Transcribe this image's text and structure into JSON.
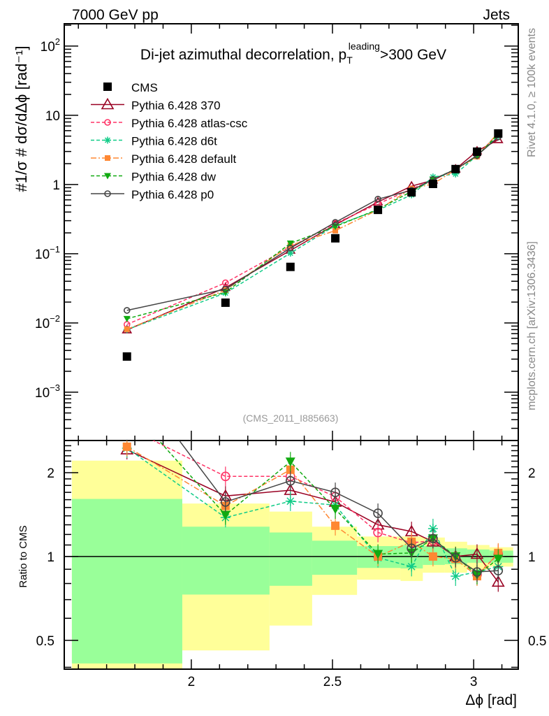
{
  "header": {
    "left": "7000 GeV pp",
    "right": "Jets"
  },
  "side": {
    "rivet": "Rivet 4.1.0, ≥ 100k events",
    "mcplots": "mcplots.cern.ch [arXiv:1306.3436]"
  },
  "chart_data": {
    "type": "line",
    "title": "Di-jet azimuthal decorrelation, p",
    "title_sub": "T",
    "title_sup": "leading",
    "title_tail": ">300 GeV",
    "analysis_id": "(CMS_2011_I885663)",
    "xlabel": "Δϕ [rad]",
    "ylabel": "#1/σ # dσ/dΔϕ [rad⁻¹]",
    "ratio_ylabel": "Ratio to CMS",
    "xlim": [
      1.55,
      3.158
    ],
    "ylim": [
      0.0002,
      210
    ],
    "yscale": "log",
    "ratio_ylim": [
      0.394,
      2.61
    ],
    "x_ticks": [
      "2",
      "2.5",
      "3"
    ],
    "x_tick_values": [
      2,
      2.5,
      3
    ],
    "y_ticks": [
      {
        "value": 100,
        "base": "10",
        "exp": "2"
      },
      {
        "value": 10,
        "base": "10",
        "exp": ""
      },
      {
        "value": 1,
        "base": "1",
        "exp": ""
      },
      {
        "value": 0.1,
        "base": "10",
        "exp": "−1"
      },
      {
        "value": 0.01,
        "base": "10",
        "exp": "−2"
      },
      {
        "value": 0.001,
        "base": "10",
        "exp": "−3"
      }
    ],
    "ratio_ticks": [
      {
        "value": 2,
        "label": "2"
      },
      {
        "value": 1,
        "label": "1"
      },
      {
        "value": 0.5,
        "label": "0.5"
      }
    ],
    "x": [
      1.772,
      2.121,
      2.351,
      2.51,
      2.661,
      2.78,
      2.856,
      2.936,
      3.012,
      3.087
    ],
    "data": {
      "name": "CMS",
      "values": [
        0.00327,
        0.0196,
        0.0645,
        0.167,
        0.43,
        0.77,
        1.02,
        1.67,
        2.98,
        5.46
      ]
    },
    "bins": [
      1.577,
      1.968,
      2.277,
      2.428,
      2.587,
      2.741,
      2.82,
      2.898,
      2.977,
      3.056,
      3.14
    ],
    "band_outer": [
      [
        0.38,
        2.21
      ],
      [
        0.46,
        1.55
      ],
      [
        0.565,
        1.45
      ],
      [
        0.728,
        1.28
      ],
      [
        0.826,
        1.18
      ],
      [
        0.817,
        1.18
      ],
      [
        0.875,
        1.17
      ],
      [
        0.875,
        1.13
      ],
      [
        0.896,
        1.1
      ],
      [
        0.92,
        1.08
      ]
    ],
    "band_inner": [
      [
        0.413,
        1.61
      ],
      [
        0.73,
        1.28
      ],
      [
        0.785,
        1.22
      ],
      [
        0.86,
        1.14
      ],
      [
        0.91,
        1.09
      ],
      [
        0.906,
        1.1
      ],
      [
        0.933,
        1.09
      ],
      [
        0.938,
        1.07
      ],
      [
        0.95,
        1.06
      ],
      [
        0.95,
        1.05
      ]
    ],
    "series": [
      {
        "name": "Pythia 6.428 370",
        "color": "#990022",
        "dash": "",
        "marker": "triangle-open",
        "ratio": [
          2.42,
          1.65,
          1.73,
          1.57,
          1.3,
          1.23,
          1.13,
          1.0,
          1.02,
          0.81
        ]
      },
      {
        "name": "Pythia 6.428 atlas-csc",
        "color": "#ff3366",
        "dash": "5,3",
        "marker": "circle-open",
        "ratio": [
          2.91,
          1.94,
          1.94,
          1.64,
          1.22,
          1.12,
          1.14,
          1.0,
          0.86,
          1.02
        ]
      },
      {
        "name": "Pythia 6.428 d6t",
        "color": "#11cc88",
        "dash": "5,3",
        "marker": "star",
        "ratio": [
          2.45,
          1.38,
          1.58,
          1.53,
          0.99,
          0.92,
          1.26,
          0.85,
          0.88,
          0.92
        ]
      },
      {
        "name": "Pythia 6.428 default",
        "color": "#ff8833",
        "dash": "8,3,2,3",
        "marker": "square",
        "ratio": [
          2.48,
          1.52,
          2.05,
          1.29,
          1.0,
          1.13,
          1.0,
          0.98,
          0.85,
          1.03
        ]
      },
      {
        "name": "Pythia 6.428 dw",
        "color": "#11aa11",
        "dash": "5,3",
        "marker": "triangle-down",
        "ratio": [
          3.51,
          1.41,
          2.19,
          1.48,
          1.02,
          1.03,
          1.16,
          1.0,
          0.86,
          0.98
        ]
      },
      {
        "name": "Pythia 6.428 p0",
        "color": "#444444",
        "dash": "",
        "marker": "circle-open",
        "ratio": [
          4.64,
          1.57,
          1.87,
          1.7,
          1.43,
          1.07,
          1.16,
          0.99,
          0.88,
          0.89
        ]
      }
    ],
    "colors": {
      "band_outer": "#ffff99",
      "band_inner": "#99ff99"
    },
    "legend_placement": "top-left"
  }
}
